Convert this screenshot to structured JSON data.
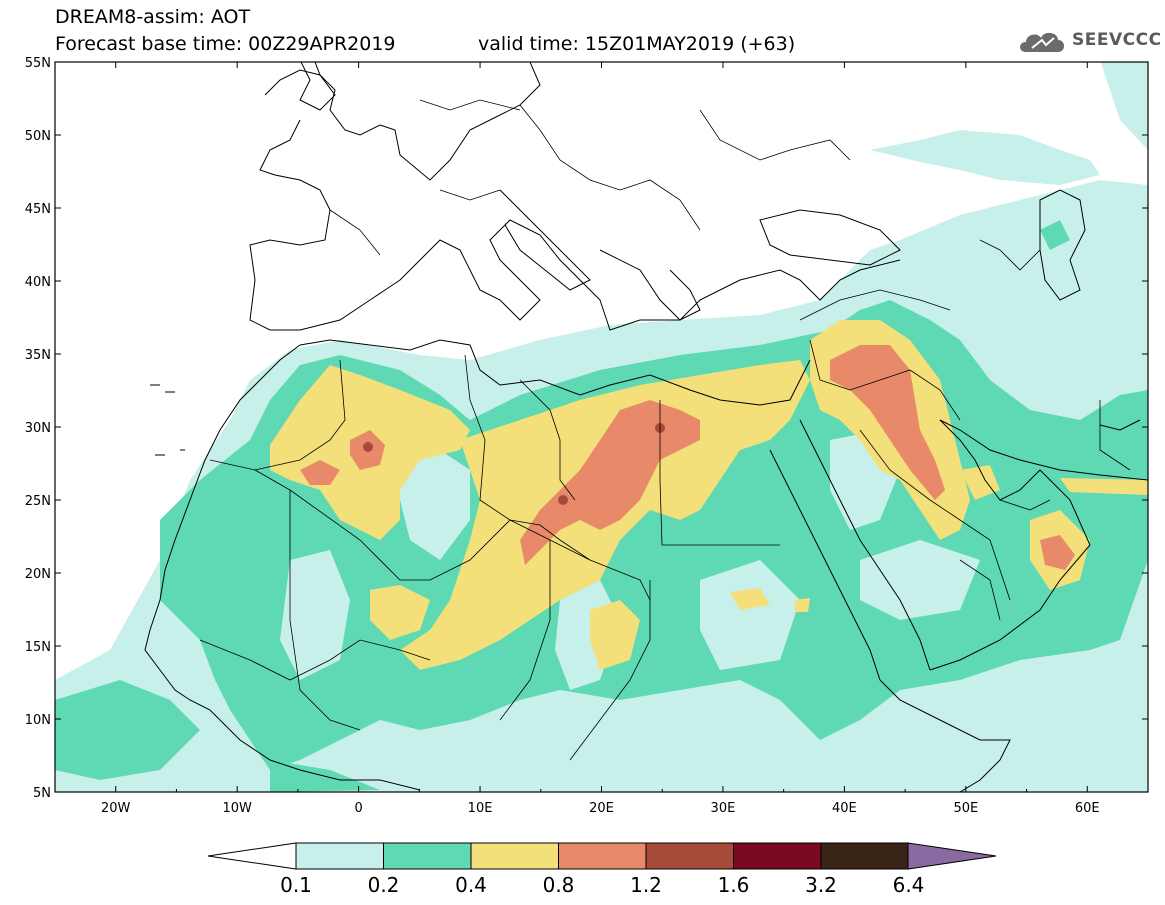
{
  "header": {
    "title": "DREAM8-assim: AOT",
    "base_time": "Forecast base time: 00Z29APR2019",
    "valid_time": "valid time: 15Z01MAY2019 (+63)"
  },
  "logo": {
    "text": "SEEVCCC",
    "icon": "cloud-icon"
  },
  "map": {
    "lat_labels": [
      "55N",
      "50N",
      "45N",
      "40N",
      "35N",
      "30N",
      "25N",
      "20N",
      "15N",
      "10N",
      "5N"
    ],
    "lon_labels": [
      "20W",
      "10W",
      "0",
      "10E",
      "20E",
      "30E",
      "40E",
      "50E",
      "60E"
    ],
    "lat_range": [
      5,
      55
    ],
    "lon_range": [
      -25,
      65
    ]
  },
  "colorbar": {
    "labels": [
      "0.1",
      "0.2",
      "0.4",
      "0.8",
      "1.2",
      "1.6",
      "3.2",
      "6.4"
    ],
    "colors": [
      "#c7f0ea",
      "#5ed9b4",
      "#f4e07a",
      "#e88a6a",
      "#a84a3a",
      "#7a0a22",
      "#3a2416",
      "#8a6aa0"
    ]
  },
  "colors": {
    "c1": "#c7f0ea",
    "c2": "#5ed9b4",
    "c3": "#f4e07a",
    "c4": "#e88a6a",
    "c5": "#a84a3a"
  }
}
